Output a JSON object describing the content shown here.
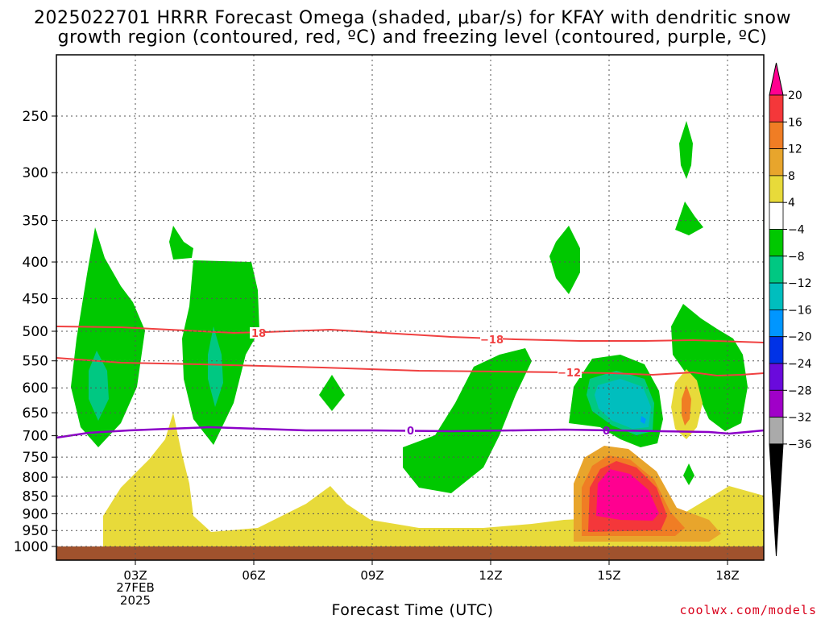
{
  "title_line1": "2025022701 HRRR Forecast Omega (shaded, μbar/s) for KFAY with dendritic snow",
  "title_line2": "growth region (contoured, red, ºC) and freezing level (contoured, purple, ºC)",
  "x_axis_title": "Forecast Time (UTC)",
  "credit": "coolwx.com/models",
  "first_tick_date_line1": "27FEB",
  "first_tick_date_line2": "2025",
  "chart_data": {
    "type": "heatmap",
    "title": "2025022701 HRRR Forecast Omega (shaded, μbar/s) for KFAY with dendritic snow growth region (contoured, red, ºC) and freezing level (contoured, purple, ºC)",
    "xlabel": "Forecast Time (UTC)",
    "ylabel": "",
    "x_ticks": [
      "03Z",
      "06Z",
      "09Z",
      "12Z",
      "15Z",
      "18Z"
    ],
    "y_ticks": [
      250,
      300,
      350,
      400,
      450,
      500,
      550,
      600,
      650,
      700,
      750,
      800,
      850,
      900,
      950,
      1000
    ],
    "y_scale": "log",
    "y_direction": "pressure (hPa), decreasing upward",
    "grid": true,
    "colorbar": {
      "label_values": [
        20,
        16,
        12,
        8,
        4,
        -4,
        -8,
        -12,
        -16,
        -20,
        -24,
        -28,
        -32,
        -36
      ],
      "colors": [
        "#ff0090",
        "#f4373a",
        "#f07d24",
        "#e8a52c",
        "#e8da3a",
        "#ffffff",
        "#00c800",
        "#00c882",
        "#00bebe",
        "#0096ff",
        "#0032e6",
        "#6a0adc",
        "#a000c8",
        "#aaaaaa",
        "#000000"
      ]
    },
    "contours": [
      {
        "name": "-18",
        "color": "#f04040",
        "label": "−18"
      },
      {
        "name": "-12",
        "color": "#f04040",
        "label": "−12"
      },
      {
        "name": "0",
        "color": "#8c00c8",
        "label": "0"
      }
    ]
  }
}
